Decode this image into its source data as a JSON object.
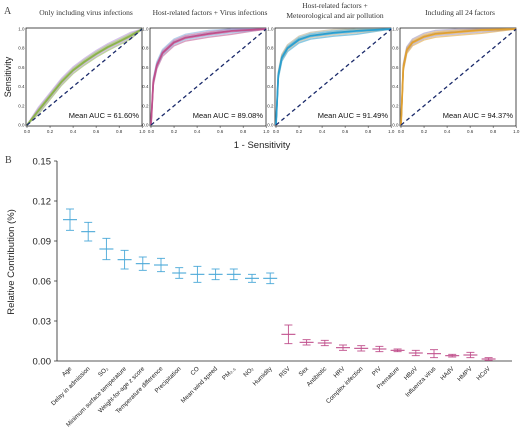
{
  "chart_data": [
    {
      "panel": "A",
      "type": "line",
      "ylabel": "Sensitivity",
      "xlabel": "1 - Sensitivity",
      "xticks": [
        "0.0",
        "0.2",
        "0.4",
        "0.6",
        "0.8",
        "1.0"
      ],
      "yticks": [
        "0.0",
        "0.2",
        "0.4",
        "0.6",
        "0.8",
        "1.0"
      ],
      "xlim": [
        0,
        1
      ],
      "ylim": [
        0,
        1
      ],
      "subplots": [
        {
          "title": "Only including virus infections",
          "annotation": "Mean AUC = 61.60%",
          "auc": 0.616,
          "color": "#8bb34a",
          "band_color": "#b58fd8",
          "x": [
            0,
            0.1,
            0.2,
            0.3,
            0.4,
            0.5,
            0.6,
            0.7,
            0.8,
            0.9,
            1.0
          ],
          "y": [
            0,
            0.15,
            0.3,
            0.45,
            0.57,
            0.66,
            0.74,
            0.81,
            0.87,
            0.93,
            1.0
          ]
        },
        {
          "title": "Host-related factors + Virus infections",
          "annotation": "Mean AUC = 89.08%",
          "auc": 0.8908,
          "color": "#c0508c",
          "band_color": "#7fa8d8",
          "x": [
            0,
            0.02,
            0.05,
            0.1,
            0.2,
            0.3,
            0.5,
            0.7,
            1.0
          ],
          "y": [
            0,
            0.45,
            0.62,
            0.75,
            0.86,
            0.91,
            0.95,
            0.98,
            1.0
          ]
        },
        {
          "title": "Host-related factors +\nMeteorological and air pollution",
          "title_lines": [
            "Host-related factors +",
            "Meteorological and air pollution"
          ],
          "annotation": "Mean AUC = 91.49%",
          "auc": 0.9149,
          "color": "#2a9fd0",
          "band_color": "#b3a98a",
          "x": [
            0,
            0.02,
            0.05,
            0.1,
            0.2,
            0.3,
            0.5,
            0.7,
            1.0
          ],
          "y": [
            0,
            0.52,
            0.7,
            0.8,
            0.89,
            0.93,
            0.96,
            0.98,
            1.0
          ]
        },
        {
          "title": "Including all 24 factors",
          "annotation": "Mean AUC = 94.37%",
          "auc": 0.9437,
          "color": "#e0a030",
          "band_color": "#9a8fb8",
          "x": [
            0,
            0.02,
            0.05,
            0.1,
            0.2,
            0.3,
            0.5,
            0.7,
            1.0
          ],
          "y": [
            0,
            0.6,
            0.78,
            0.86,
            0.92,
            0.95,
            0.97,
            0.99,
            1.0
          ]
        }
      ]
    },
    {
      "panel": "B",
      "type": "scatter",
      "ylabel": "Relative Contribution (%)",
      "yticks": [
        "0.00",
        "0.03",
        "0.06",
        "0.09",
        "0.12",
        "0.15"
      ],
      "ylim": [
        0,
        0.15
      ],
      "groups": [
        {
          "color": "#4aa8d8",
          "categories": [
            "Age",
            "Delay in admission",
            "SO₂",
            "Minimum surface temperature",
            "Weight-for-age z score",
            "Temperature difference",
            "Precipitation",
            "CO",
            "Mean wind speed",
            "PM₂.₅",
            "NO₂",
            "Humidity"
          ]
        },
        {
          "color": "#c0508c",
          "categories": [
            "RSV",
            "Sex",
            "Antibiotic",
            "HRV",
            "Complex infection",
            "PIV",
            "Premature",
            "HBoV",
            "Influenza virus",
            "HAdV",
            "HMPV",
            "HCoV"
          ]
        }
      ],
      "categories": [
        "Age",
        "Delay in admission",
        "SO₂",
        "Minimum surface temperature",
        "Weight-for-age z score",
        "Temperature difference",
        "Precipitation",
        "CO",
        "Mean wind speed",
        "PM₂.₅",
        "NO₂",
        "Humidity",
        "RSV",
        "Sex",
        "Antibiotic",
        "HRV",
        "Complex infection",
        "PIV",
        "Premature",
        "HBoV",
        "Influenza virus",
        "HAdV",
        "HMPV",
        "HCoV"
      ],
      "values": [
        0.106,
        0.097,
        0.084,
        0.076,
        0.073,
        0.072,
        0.066,
        0.065,
        0.065,
        0.065,
        0.062,
        0.062,
        0.02,
        0.014,
        0.0135,
        0.01,
        0.0095,
        0.009,
        0.008,
        0.006,
        0.0055,
        0.004,
        0.0045,
        0.0015
      ],
      "err": [
        0.008,
        0.007,
        0.008,
        0.007,
        0.005,
        0.005,
        0.004,
        0.006,
        0.004,
        0.004,
        0.003,
        0.004,
        0.007,
        0.002,
        0.002,
        0.002,
        0.002,
        0.002,
        0.001,
        0.002,
        0.003,
        0.001,
        0.002,
        0.001
      ]
    }
  ]
}
